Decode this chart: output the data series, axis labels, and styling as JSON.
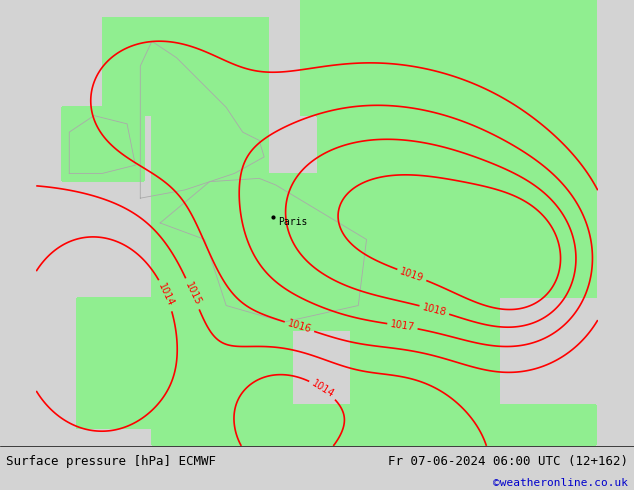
{
  "title_left": "Surface pressure [hPa] ECMWF",
  "title_right": "Fr 07-06-2024 06:00 UTC (12+162)",
  "credit": "©weatheronline.co.uk",
  "bg_color_ocean": "#d3d3d3",
  "bg_color_land_low": "#c8e6c8",
  "bg_color_land_high": "#90ee90",
  "contour_color": "#ff0000",
  "border_color": "#aaaaaa",
  "label_color": "#ff0000",
  "paris_label": "Paris",
  "contour_levels": [
    1014,
    1015,
    1016,
    1017,
    1018,
    1019
  ],
  "figsize": [
    6.34,
    4.9
  ],
  "dpi": 100
}
